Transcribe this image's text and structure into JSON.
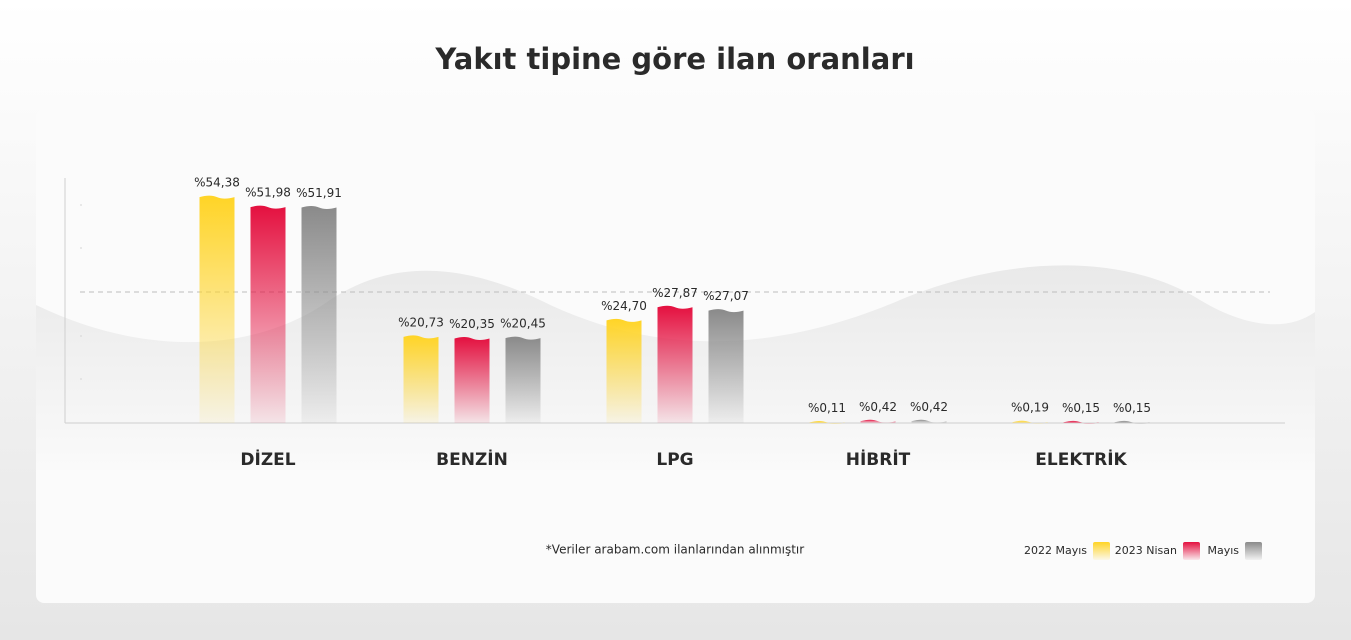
{
  "chart_data": {
    "type": "bar",
    "title": "Yakıt tipine göre ilan oranları",
    "note": "*Veriler arabam.com ilanlarından alınmıştır",
    "categories": [
      "DİZEL",
      "BENZİN",
      "LPG",
      "HİBRİT",
      "ELEKTRİK"
    ],
    "ylim": [
      0,
      59
    ],
    "series": [
      {
        "name": "2022 Mayıs",
        "color": "#ffd426",
        "values": [
          54.38,
          20.73,
          24.7,
          0.11,
          0.19
        ],
        "value_labels": [
          "%54,38",
          "%20,73",
          "%24,70",
          "%0,11",
          "%0,19"
        ]
      },
      {
        "name": "2023 Nisan",
        "color": "#e4103f",
        "values": [
          51.98,
          20.35,
          27.87,
          0.42,
          0.15
        ],
        "value_labels": [
          "%51,98",
          "%20,35",
          "%27,87",
          "%0,42",
          "%0,15"
        ]
      },
      {
        "name": "Mayıs",
        "color": "#8a8a8a",
        "values": [
          51.91,
          20.45,
          27.07,
          0.42,
          0.15
        ],
        "value_labels": [
          "%51,91",
          "%20,45",
          "%27,07",
          "%0,42",
          "%0,15"
        ]
      }
    ]
  }
}
